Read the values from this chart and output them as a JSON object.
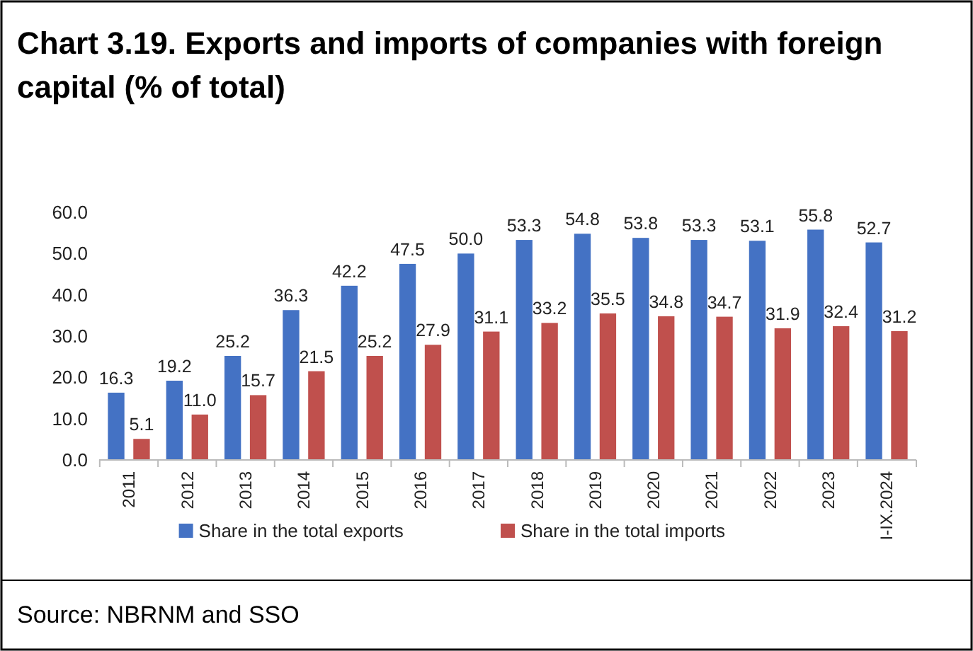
{
  "chart_data": {
    "type": "bar",
    "title": "Chart 3.19. Exports and imports of companies with foreign capital (% of total)",
    "categories": [
      "2011",
      "2012",
      "2013",
      "2014",
      "2015",
      "2016",
      "2017",
      "2018",
      "2019",
      "2020",
      "2021",
      "2022",
      "2023",
      "I-IX.2024"
    ],
    "series": [
      {
        "name": "Share in the total exports",
        "color": "#4472c4",
        "values": [
          16.3,
          19.2,
          25.2,
          36.3,
          42.2,
          47.5,
          50.0,
          53.3,
          54.8,
          53.8,
          53.3,
          53.1,
          55.8,
          52.7
        ]
      },
      {
        "name": "Share in the total imports",
        "color": "#c0504d",
        "values": [
          5.1,
          11.0,
          15.7,
          21.5,
          25.2,
          27.9,
          31.1,
          33.2,
          35.5,
          34.8,
          34.7,
          31.9,
          32.4,
          31.2
        ]
      }
    ],
    "value_labels": [
      [
        "16.3",
        "19.2",
        "25.2",
        "36.3",
        "42.2",
        "47.5",
        "50.0",
        "53.3",
        "54.8",
        "53.8",
        "53.3",
        "53.1",
        "55.8",
        "52.7"
      ],
      [
        "5.1",
        "11.0",
        "15.7",
        "21.5",
        "25.2",
        "27.9",
        "31.1",
        "33.2",
        "35.5",
        "34.8",
        "34.7",
        "31.9",
        "32.4",
        "31.2"
      ]
    ],
    "ylim": [
      0,
      60
    ],
    "yticks": [
      {
        "value": 0,
        "label": "0.0"
      },
      {
        "value": 10,
        "label": "10.0"
      },
      {
        "value": 20,
        "label": "20.0"
      },
      {
        "value": 30,
        "label": "30.0"
      },
      {
        "value": 40,
        "label": "40.0"
      },
      {
        "value": 50,
        "label": "50.0"
      },
      {
        "value": 60,
        "label": "60.0"
      }
    ],
    "legend": "bottom",
    "annotations": [
      "Source: NBRNM and SSO"
    ]
  }
}
